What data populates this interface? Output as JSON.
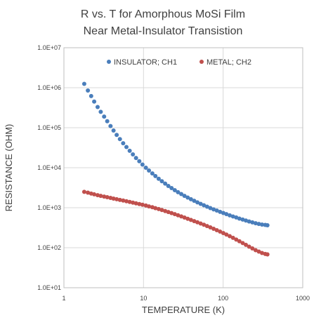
{
  "chart_data": {
    "type": "scatter",
    "title": [
      "R vs. T for Amorphous MoSi Film",
      "Near Metal-Insulator Transistion"
    ],
    "xlabel": "TEMPERATURE (K)",
    "ylabel": "RESISTANCE (OHM)",
    "x_scale": "log",
    "y_scale": "log",
    "xlim": [
      1,
      1000
    ],
    "ylim": [
      10,
      10000000
    ],
    "x_ticks": [
      "1",
      "10",
      "100",
      "1000"
    ],
    "y_ticks": [
      "1.0E+01",
      "1.0E+02",
      "1.0E+03",
      "1.0E+04",
      "1.0E+05",
      "1.0E+06",
      "1.0E+07"
    ],
    "grid": true,
    "legend_position": "top",
    "series": [
      {
        "name": "INSULATOR; CH1",
        "color": "#4a7ebb",
        "x": [
          1.8,
          2.0,
          2.2,
          2.4,
          2.65,
          2.9,
          3.2,
          3.5,
          3.85,
          4.2,
          4.6,
          5.05,
          5.55,
          6.1,
          6.7,
          7.35,
          8.05,
          8.85,
          9.7,
          10.7,
          11.7,
          12.9,
          14.1,
          15.5,
          17.0,
          18.7,
          20.5,
          22.5,
          24.7,
          27.1,
          29.8,
          32.7,
          35.9,
          39.4,
          43.3,
          47.5,
          52.2,
          57.3,
          62.9,
          69.1,
          75.9,
          83.3,
          91.5,
          100.5,
          110,
          121,
          133,
          146,
          160,
          176,
          193,
          212,
          233,
          256,
          281,
          308,
          338,
          360
        ],
        "y": [
          1250000,
          850000,
          620000,
          450000,
          330000,
          250000,
          190000,
          145000,
          110000,
          85000,
          66000,
          52000,
          41000,
          33000,
          26500,
          21500,
          17500,
          14500,
          12000,
          10000,
          8500,
          7200,
          6200,
          5300,
          4600,
          4000,
          3500,
          3100,
          2750,
          2450,
          2200,
          1980,
          1800,
          1630,
          1490,
          1360,
          1250,
          1150,
          1060,
          980,
          910,
          850,
          790,
          740,
          690,
          645,
          605,
          570,
          535,
          505,
          478,
          452,
          430,
          410,
          393,
          380,
          372,
          365
        ]
      },
      {
        "name": "METAL; CH2",
        "color": "#c0504d",
        "x": [
          1.8,
          2.0,
          2.2,
          2.4,
          2.65,
          2.9,
          3.2,
          3.5,
          3.85,
          4.2,
          4.6,
          5.05,
          5.55,
          6.1,
          6.7,
          7.35,
          8.05,
          8.85,
          9.7,
          10.7,
          11.7,
          12.9,
          14.1,
          15.5,
          17.0,
          18.7,
          20.5,
          22.5,
          24.7,
          27.1,
          29.8,
          32.7,
          35.9,
          39.4,
          43.3,
          47.5,
          52.2,
          57.3,
          62.9,
          69.1,
          75.9,
          83.3,
          91.5,
          100.5,
          110,
          121,
          133,
          146,
          160,
          176,
          193,
          212,
          233,
          256,
          281,
          308,
          338,
          360
        ],
        "y": [
          2500,
          2380,
          2260,
          2160,
          2060,
          1980,
          1900,
          1830,
          1760,
          1690,
          1630,
          1570,
          1510,
          1450,
          1395,
          1340,
          1290,
          1235,
          1185,
          1135,
          1080,
          1030,
          975,
          925,
          875,
          825,
          780,
          735,
          690,
          648,
          607,
          568,
          530,
          495,
          462,
          432,
          402,
          375,
          348,
          322,
          298,
          275,
          253,
          232,
          213,
          195,
          177,
          160,
          145,
          131,
          118,
          106,
          96,
          87,
          80,
          74,
          70,
          68
        ]
      }
    ]
  }
}
